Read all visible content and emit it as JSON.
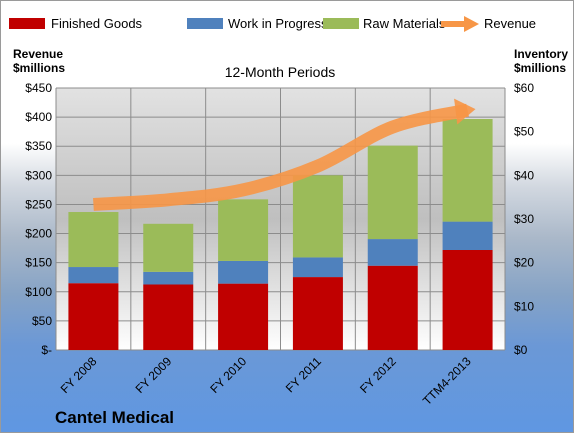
{
  "chart_data": {
    "type": "bar",
    "subtitle": "12-Month Periods",
    "company": "Cantel Medical",
    "left_axis_title": [
      "Revenue",
      "$millions"
    ],
    "right_axis_title": [
      "Inventory",
      "$millions"
    ],
    "categories": [
      "FY 2008",
      "FY 2009",
      "FY 2010",
      "FY 2011",
      "FY 2012",
      "TTM4-2013"
    ],
    "left_ticks": [
      "$-",
      "$50",
      "$100",
      "$150",
      "$200",
      "$250",
      "$300",
      "$350",
      "$400",
      "$450"
    ],
    "right_ticks": [
      "$0",
      "$10",
      "$20",
      "$30",
      "$40",
      "$50",
      "$60"
    ],
    "left_ylim": [
      0,
      450
    ],
    "right_ylim": [
      0,
      60
    ],
    "stacked": true,
    "series": [
      {
        "name": "Finished Goods",
        "type": "bar",
        "axis": "right",
        "color": "#c00000",
        "values": [
          15.3,
          15.0,
          15.2,
          16.7,
          19.3,
          22.9
        ]
      },
      {
        "name": "Work in Progress",
        "type": "bar",
        "axis": "right",
        "color": "#4f81bd",
        "values": [
          3.7,
          2.9,
          5.2,
          4.5,
          6.1,
          6.5
        ]
      },
      {
        "name": "Raw Materials",
        "type": "bar",
        "axis": "right",
        "color": "#9bbb59",
        "values": [
          12.6,
          11.0,
          14.1,
          18.8,
          21.4,
          23.5
        ]
      },
      {
        "name": "Revenue",
        "type": "line",
        "axis": "left",
        "color": "#f79646",
        "values": [
          250,
          258,
          275,
          316,
          383,
          412
        ]
      }
    ],
    "grid": true,
    "legend": "top"
  }
}
